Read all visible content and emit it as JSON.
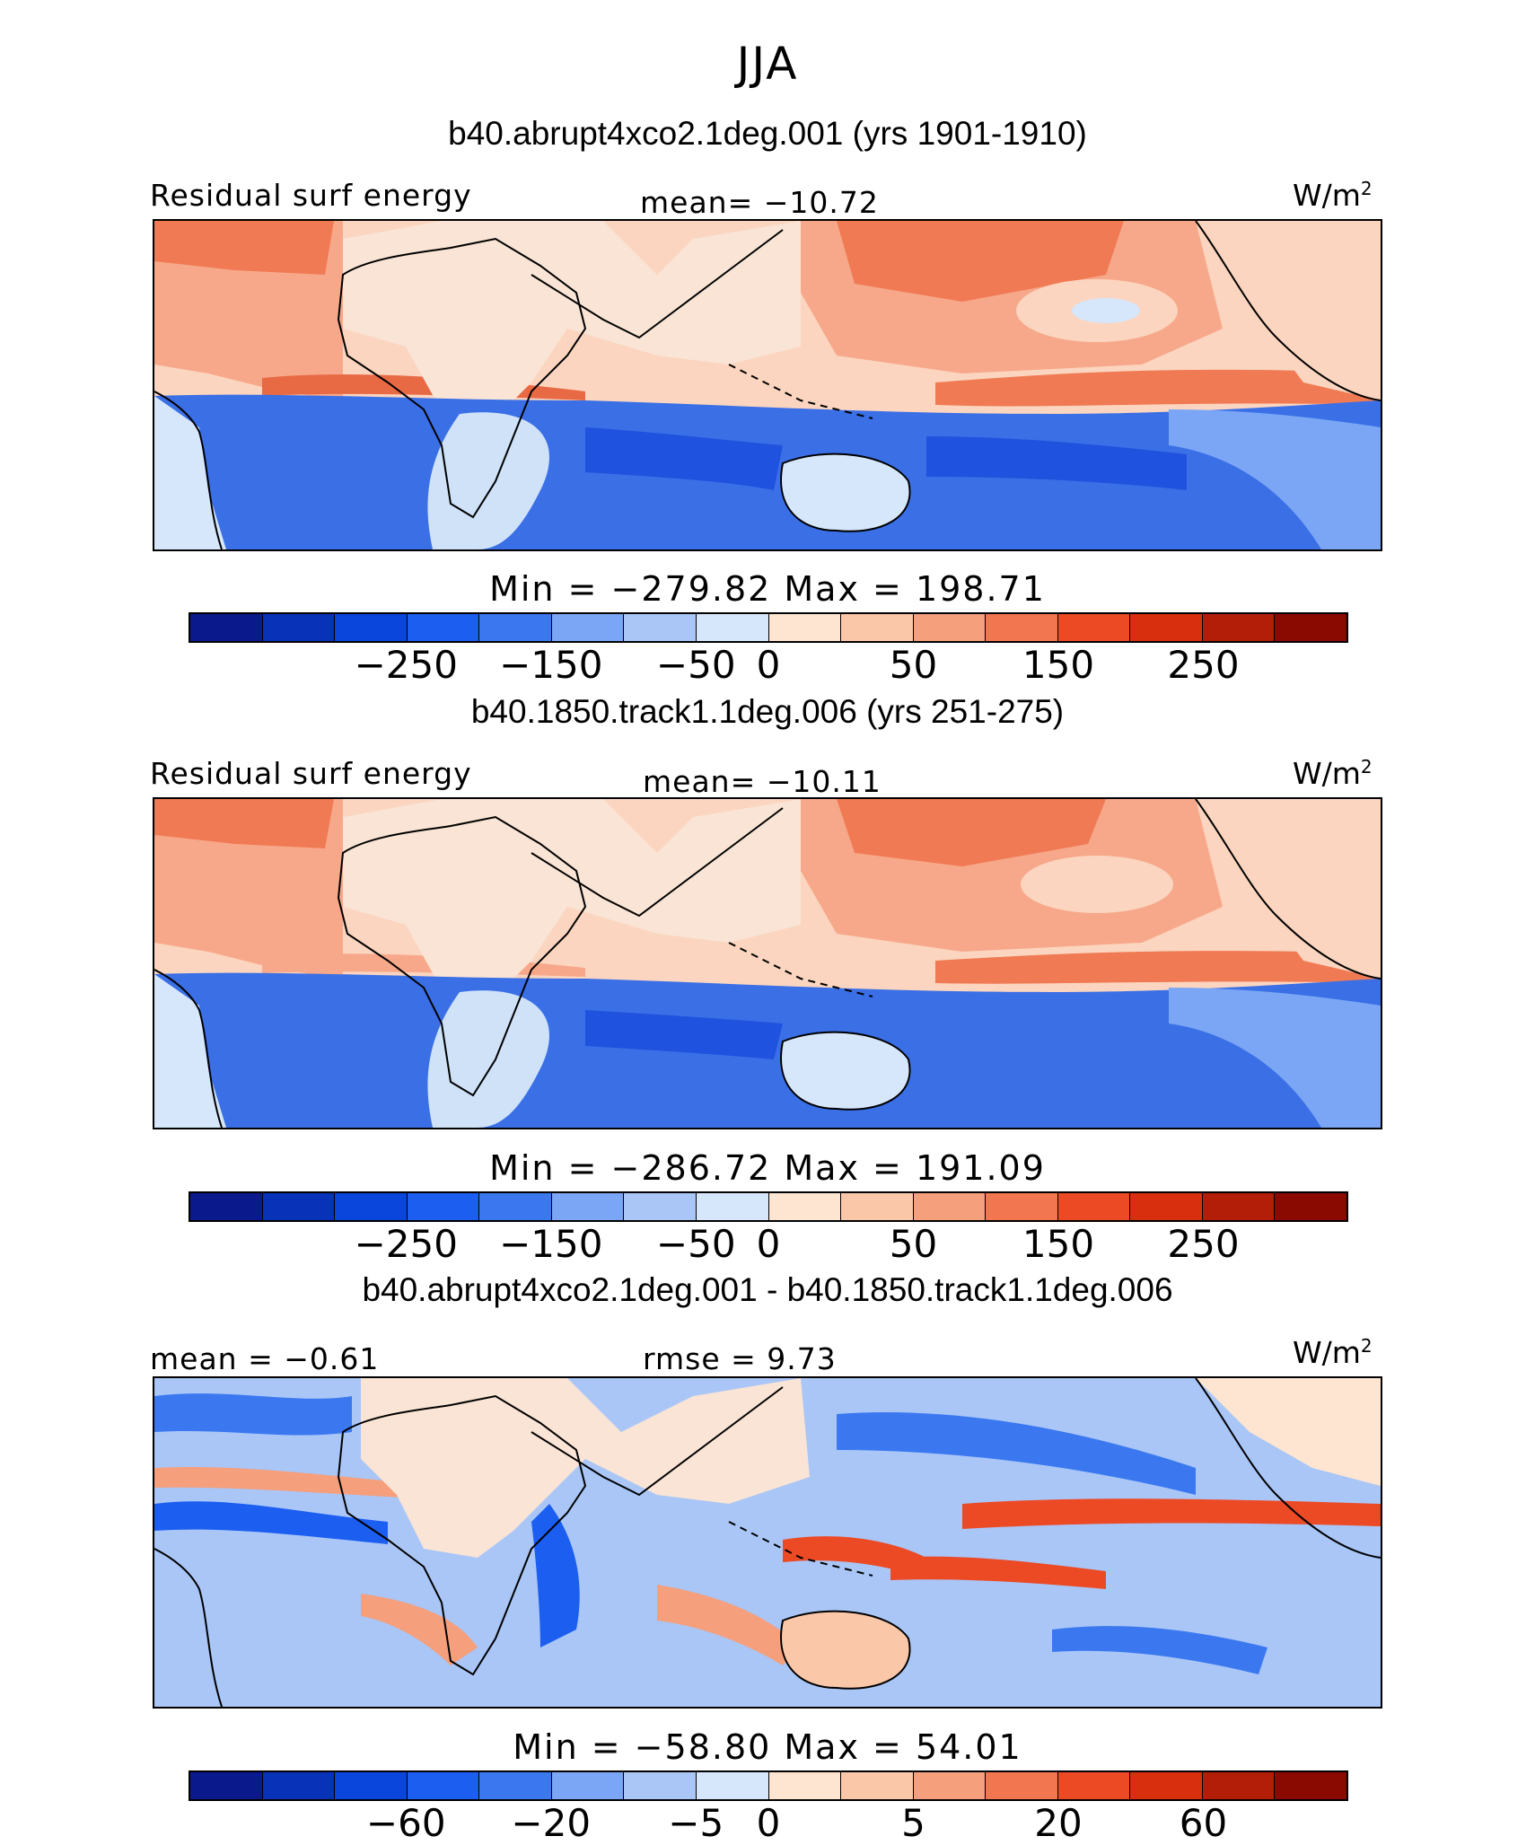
{
  "title": "JJA",
  "panels": [
    {
      "title": "b40.abrupt4xco2.1deg.001 (yrs 1901-1910)",
      "label_left": "Residual surf energy",
      "label_center": "mean= −10.72",
      "units": "W/m",
      "units_sup": "2",
      "minmax": "Min = −279.82 Max = 198.71",
      "ticks": [
        "−250",
        "−150",
        "−50",
        "0",
        "50",
        "150",
        "250"
      ],
      "colorbar_colors": [
        "#0a1a8c",
        "#0833b8",
        "#0a45dc",
        "#1b5ef0",
        "#3b78f0",
        "#7aa6f5",
        "#a9c6f7",
        "#d6e7fb",
        "#fde5d2",
        "#fbc7a9",
        "#f59f7c",
        "#f27650",
        "#ec4a25",
        "#d8300f",
        "#b31e08",
        "#8a0a02"
      ],
      "map_colors": {
        "land": "#f9e4d5",
        "north_ocean": "#f7a88a",
        "strong_pos": "#f07a53",
        "tropical_band": "#fbd5bf",
        "south_ocean": "#3a6fe6",
        "deep_south": "#1f52de",
        "south_land": "#cfe2f8",
        "tropic_strip": "#e86a45"
      }
    },
    {
      "title": "b40.1850.track1.1deg.006 (yrs 251-275)",
      "label_left": "Residual surf energy",
      "label_center": "mean= −10.11",
      "units": "W/m",
      "units_sup": "2",
      "minmax": "Min = −286.72 Max = 191.09",
      "ticks": [
        "−250",
        "−150",
        "−50",
        "0",
        "50",
        "150",
        "250"
      ],
      "colorbar_colors": [
        "#0a1a8c",
        "#0833b8",
        "#0a45dc",
        "#1b5ef0",
        "#3b78f0",
        "#7aa6f5",
        "#a9c6f7",
        "#d6e7fb",
        "#fde5d2",
        "#fbc7a9",
        "#f59f7c",
        "#f27650",
        "#ec4a25",
        "#d8300f",
        "#b31e08",
        "#8a0a02"
      ],
      "map_colors": {
        "land": "#f9e4d5",
        "north_ocean": "#f7a88a",
        "strong_pos": "#f07a53",
        "tropical_band": "#fbd5bf",
        "south_ocean": "#3a6fe6",
        "deep_south": "#1f52de",
        "south_land": "#cfe2f8",
        "tropic_strip": "#e86a45"
      }
    },
    {
      "title": "b40.abrupt4xco2.1deg.001 - b40.1850.track1.1deg.006",
      "label_left": "mean =  −0.61",
      "label_center": "rmse =    9.73",
      "units": "W/m",
      "units_sup": "2",
      "minmax": "Min = −58.80 Max =  54.01",
      "ticks": [
        "−60",
        "−20",
        "−5",
        "0",
        "5",
        "20",
        "60"
      ],
      "colorbar_colors": [
        "#0a1a8c",
        "#0833b8",
        "#0a45dc",
        "#1b5ef0",
        "#3b78f0",
        "#7aa6f5",
        "#a9c6f7",
        "#d6e7fb",
        "#fde5d2",
        "#fbc7a9",
        "#f59f7c",
        "#f27650",
        "#ec4a25",
        "#d8300f",
        "#b31e08",
        "#8a0a02"
      ],
      "map_colors": {
        "land": "#f9e4d5",
        "background": "#a9c6f7",
        "pos": "#f59f7c",
        "strong_pos": "#ec4a25",
        "neg": "#3b78f0",
        "strong_neg": "#1b5ef0"
      }
    }
  ]
}
